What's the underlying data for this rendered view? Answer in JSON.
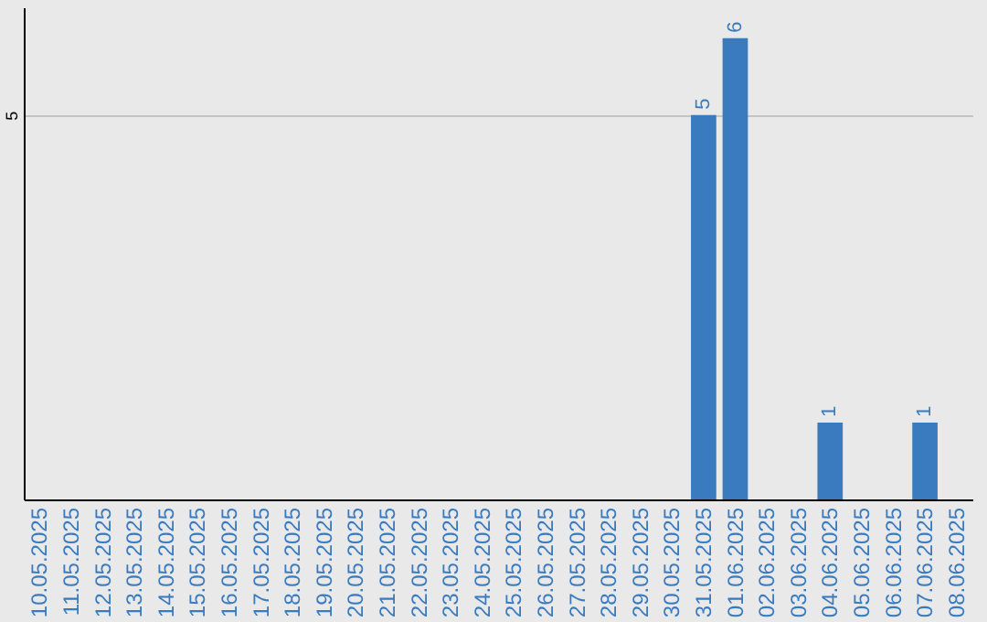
{
  "chart_data": {
    "type": "bar",
    "categories": [
      "10.05.2025",
      "11.05.2025",
      "12.05.2025",
      "13.05.2025",
      "14.05.2025",
      "15.05.2025",
      "16.05.2025",
      "17.05.2025",
      "18.05.2025",
      "19.05.2025",
      "20.05.2025",
      "21.05.2025",
      "22.05.2025",
      "23.05.2025",
      "24.05.2025",
      "25.05.2025",
      "26.05.2025",
      "27.05.2025",
      "28.05.2025",
      "29.05.2025",
      "30.05.2025",
      "31.05.2025",
      "01.06.2025",
      "02.06.2025",
      "03.06.2025",
      "04.06.2025",
      "05.06.2025",
      "06.06.2025",
      "07.06.2025",
      "08.06.2025"
    ],
    "values": [
      null,
      null,
      null,
      null,
      null,
      null,
      null,
      null,
      null,
      null,
      null,
      null,
      null,
      null,
      null,
      null,
      null,
      null,
      null,
      null,
      null,
      5,
      6,
      null,
      null,
      1,
      null,
      null,
      1,
      null
    ],
    "color": "#3a7bc0",
    "ylim": [
      0,
      6.4
    ],
    "yticks": [
      5
    ],
    "grid": "y",
    "data_labels": true
  }
}
